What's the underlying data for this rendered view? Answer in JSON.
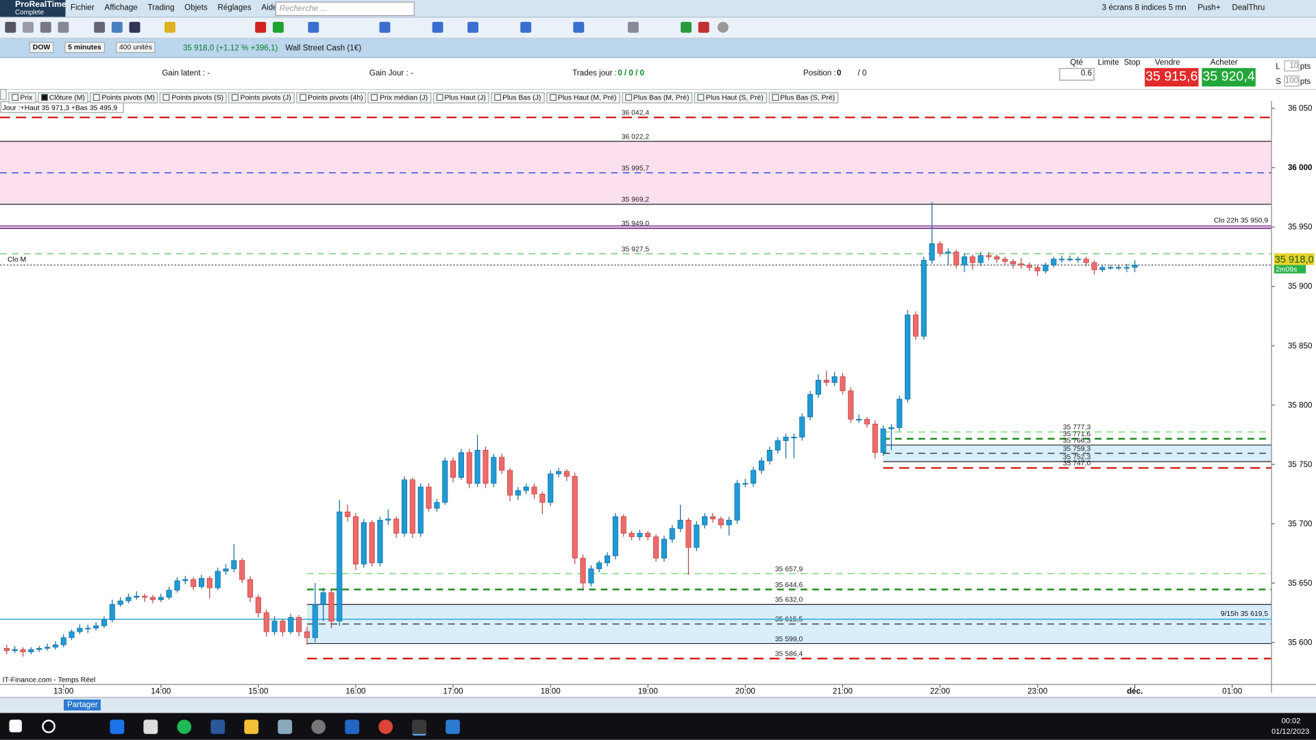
{
  "menu": {
    "app": "ProRealTime",
    "edition": "Complete",
    "items": [
      "Fichier",
      "Affichage",
      "Trading",
      "Objets",
      "Réglages",
      "Aide"
    ],
    "search": "Recherche ...",
    "right": [
      "3 écrans 8 indices 5 mn",
      "Push+",
      "DealThru"
    ]
  },
  "instrument": {
    "symbol": "DOW",
    "period": "5 minutes",
    "units": "400 unités",
    "quote": "35 918,0 (+1,12 % +396,1)",
    "name": "Wall Street Cash (1€)"
  },
  "order_panel": {
    "gain_latent": "Gain latent : -",
    "gain_jour": "Gain Jour : -",
    "trades_label": "Trades jour :",
    "trades_value": "0 / 0 / 0",
    "position_label": "Position :",
    "position_value": "0",
    "position_value2": "/ 0",
    "qty_label": "Qté",
    "qty": "0.6",
    "limit": "Limite",
    "stop": "Stop",
    "sell_label": "Vendre",
    "buy_label": "Acheter",
    "sell": "35 915,6",
    "buy": "35 920,4",
    "l_label": "L",
    "l_value": "10",
    "s_label": "S",
    "s_value": "100",
    "unit": "pts"
  },
  "indicators": [
    "Prix",
    "Clôture (M)",
    "Points pivots (M)",
    "Points pivots (S)",
    "Points pivots (J)",
    "Points pivots (4h)",
    "Prix médian (J)",
    "Plus Haut (J)",
    "Plus Bas (J)",
    "Plus Haut (M, Pré)",
    "Plus Bas (M, Pré)",
    "Plus Haut (S, Pré)",
    "Plus Bas (S, Pré)"
  ],
  "chart_data": {
    "type": "candlestick",
    "up_color": "#1f9bd6",
    "down_color": "#ee6b6b",
    "day_info": "Jour :+Haut 35 971,3 +Bas 35 495,9",
    "source": "IT-Finance.com - Temps Réel",
    "xlim": [
      -0.83,
      155.84
    ],
    "xticks": [
      {
        "value": 7,
        "label": "13:00"
      },
      {
        "value": 19,
        "label": "14:00"
      },
      {
        "value": 31,
        "label": "15:00"
      },
      {
        "value": 43,
        "label": "16:00"
      },
      {
        "value": 55,
        "label": "17:00"
      },
      {
        "value": 67,
        "label": "18:00"
      },
      {
        "value": 79,
        "label": "19:00"
      },
      {
        "value": 91,
        "label": "20:00"
      },
      {
        "value": 103,
        "label": "21:00"
      },
      {
        "value": 115,
        "label": "22:00"
      },
      {
        "value": 127,
        "label": "23:00"
      },
      {
        "value": 139,
        "label": "déc."
      },
      {
        "value": 151,
        "label": "01:00"
      }
    ],
    "ylim": [
      35564.6,
      36056.4
    ],
    "yticks": [
      {
        "value": 36050,
        "label": "36 050"
      },
      {
        "value": 36000,
        "label": "36 000"
      },
      {
        "value": 35950,
        "label": "35 950"
      },
      {
        "value": 35900,
        "label": "35 900"
      },
      {
        "value": 35850,
        "label": "35 850"
      },
      {
        "value": 35800,
        "label": "35 800"
      },
      {
        "value": 35750,
        "label": "35 750"
      },
      {
        "value": 35700,
        "label": "35 700"
      },
      {
        "value": 35650,
        "label": "35 650"
      },
      {
        "value": 35600,
        "label": "35 600"
      }
    ],
    "levels": [
      {
        "value": 36042.4,
        "label": "36 042,4",
        "color": "#d81e1e",
        "dash": "12 7",
        "width": 2
      },
      {
        "value": 36022.2,
        "label": "36 022,2",
        "color": "#222",
        "width": 1,
        "zone": "#fde0ef"
      },
      {
        "value": 35995.7,
        "label": "35 995,7",
        "color": "#4a55d8",
        "dash": "8 6",
        "width": 1.3
      },
      {
        "value": 35969.2,
        "label": "35 969,2",
        "color": "#222",
        "width": 1
      },
      {
        "value": 35949.0,
        "label": "35 949,0",
        "color": "#7a2f8c",
        "width": 1.5
      },
      {
        "value": 35927.5,
        "label": "35 927,5",
        "color": "#5cc05c",
        "dash": "8 6",
        "width": 1
      },
      {
        "value": 35657.9,
        "label": "35 657,9",
        "color": "#6ccf6c",
        "dash": "8 6",
        "width": 1,
        "from": 37
      },
      {
        "value": 35644.6,
        "label": "35 644,6",
        "color": "#1f8a1f",
        "dash": "8 6",
        "width": 2,
        "from": 37
      },
      {
        "value": 35632.0,
        "label": "35 632,0",
        "color": "#222",
        "width": 1,
        "from": 37,
        "zone": "#d8eefb"
      },
      {
        "value": 35615.5,
        "label": "35 615,5",
        "color": "#222",
        "dash": "8 6",
        "width": 1,
        "from": 37
      },
      {
        "value": 35599.0,
        "label": "35 599,0",
        "color": "#222",
        "width": 1,
        "from": 37
      },
      {
        "value": 35586.4,
        "label": "35 586,4",
        "color": "#d81e1e",
        "dash": "12 7",
        "width": 2,
        "from": 37
      },
      {
        "value": 35777.3,
        "label": "35 777,3",
        "color": "#6ccf6c",
        "dash": "8 6",
        "width": 1,
        "from": 108
      },
      {
        "value": 35771.6,
        "label": "35 771,6",
        "color": "#1f8a1f",
        "dash": "8 6",
        "width": 2,
        "from": 108
      },
      {
        "value": 35766.3,
        "label": "35 766,3",
        "color": "#222",
        "width": 1,
        "from": 108,
        "zone": "#d8eefb"
      },
      {
        "value": 35759.3,
        "label": "35 759,3",
        "color": "#222",
        "dash": "8 6",
        "width": 1,
        "from": 108
      },
      {
        "value": 35752.3,
        "label": "35 752,3",
        "color": "#222",
        "width": 1,
        "from": 108
      },
      {
        "value": 35747.0,
        "label": "35 747,0",
        "color": "#d81e1e",
        "dash": "12 7",
        "width": 2,
        "from": 108
      }
    ],
    "markers": [
      {
        "label": "Clo 22h 35 950,9",
        "value": 35950.9,
        "color": "#7a2f8c"
      },
      {
        "label": "9/15h 35 619,5",
        "value": 35619.5,
        "color": "#3fb0d8"
      }
    ],
    "current": {
      "label": "Clo M",
      "value": 35918.0,
      "value_label": "35 918,0",
      "countdown": "2m09s"
    },
    "candles": [
      [
        35595,
        35598,
        35590,
        35593
      ],
      [
        35593,
        35597,
        35591,
        35594
      ],
      [
        35594,
        35596,
        35588,
        35592
      ],
      [
        35592,
        35596,
        35590,
        35594
      ],
      [
        35594,
        35597,
        35592,
        35595
      ],
      [
        35595,
        35599,
        35593,
        35596
      ],
      [
        35596,
        35601,
        35594,
        35598
      ],
      [
        35598,
        35607,
        35596,
        35604
      ],
      [
        35604,
        35611,
        35602,
        35609
      ],
      [
        35609,
        35615,
        35607,
        35612
      ],
      [
        35612,
        35615,
        35608,
        35612
      ],
      [
        35612,
        35617,
        35610,
        35614
      ],
      [
        35614,
        35622,
        35612,
        35619
      ],
      [
        35619,
        35636,
        35617,
        35632
      ],
      [
        35632,
        35638,
        35630,
        35635
      ],
      [
        35635,
        35641,
        35633,
        35638
      ],
      [
        35638,
        35643,
        35636,
        35639
      ],
      [
        35639,
        35641,
        35634,
        35638
      ],
      [
        35638,
        35640,
        35633,
        35636
      ],
      [
        35636,
        35641,
        35634,
        35638
      ],
      [
        35638,
        35647,
        35636,
        35644
      ],
      [
        35644,
        35655,
        35642,
        35652
      ],
      [
        35652,
        35656,
        35649,
        35653
      ],
      [
        35653,
        35655,
        35644,
        35647
      ],
      [
        35647,
        35657,
        35645,
        35654
      ],
      [
        35654,
        35656,
        35637,
        35646
      ],
      [
        35646,
        35663,
        35644,
        35660
      ],
      [
        35660,
        35666,
        35657,
        35662
      ],
      [
        35662,
        35683,
        35659,
        35669
      ],
      [
        35669,
        35671,
        35650,
        35653
      ],
      [
        35653,
        35656,
        35634,
        35638
      ],
      [
        35638,
        35640,
        35621,
        35625
      ],
      [
        35625,
        35628,
        35605,
        35609
      ],
      [
        35609,
        35622,
        35606,
        35618
      ],
      [
        35618,
        35620,
        35605,
        35609
      ],
      [
        35609,
        35624,
        35607,
        35621
      ],
      [
        35621,
        35623,
        35605,
        35609
      ],
      [
        35609,
        35613,
        35598,
        35604
      ],
      [
        35604,
        35650,
        35600,
        35632
      ],
      [
        35632,
        35646,
        35618,
        35642
      ],
      [
        35642,
        35645,
        35612,
        35618
      ],
      [
        35618,
        35720,
        35614,
        35710
      ],
      [
        35710,
        35716,
        35702,
        35706
      ],
      [
        35706,
        35709,
        35661,
        35666
      ],
      [
        35666,
        35704,
        35663,
        35701
      ],
      [
        35701,
        35703,
        35664,
        35667
      ],
      [
        35667,
        35706,
        35664,
        35703
      ],
      [
        35703,
        35712,
        35699,
        35704
      ],
      [
        35704,
        35706,
        35688,
        35692
      ],
      [
        35692,
        35740,
        35689,
        35737
      ],
      [
        35737,
        35739,
        35688,
        35692
      ],
      [
        35692,
        35734,
        35689,
        35731
      ],
      [
        35731,
        35734,
        35710,
        35713
      ],
      [
        35713,
        35721,
        35710,
        35718
      ],
      [
        35718,
        35756,
        35716,
        35753
      ],
      [
        35753,
        35756,
        35735,
        35739
      ],
      [
        35739,
        35763,
        35737,
        35760
      ],
      [
        35760,
        35763,
        35730,
        35734
      ],
      [
        35734,
        35775,
        35731,
        35762
      ],
      [
        35762,
        35765,
        35730,
        35734
      ],
      [
        35734,
        35759,
        35731,
        35756
      ],
      [
        35756,
        35759,
        35742,
        35745
      ],
      [
        35745,
        35747,
        35719,
        35724
      ],
      [
        35724,
        35731,
        35720,
        35728
      ],
      [
        35728,
        35734,
        35725,
        35731
      ],
      [
        35731,
        35734,
        35721,
        35725
      ],
      [
        35725,
        35727,
        35708,
        35718
      ],
      [
        35718,
        35745,
        35715,
        35742
      ],
      [
        35742,
        35747,
        35739,
        35744
      ],
      [
        35744,
        35746,
        35736,
        35740
      ],
      [
        35740,
        35743,
        35666,
        35671
      ],
      [
        35671,
        35674,
        35645,
        35650
      ],
      [
        35650,
        35665,
        35647,
        35662
      ],
      [
        35662,
        35669,
        35659,
        35667
      ],
      [
        35667,
        35676,
        35664,
        35673
      ],
      [
        35673,
        35709,
        35670,
        35706
      ],
      [
        35706,
        35708,
        35689,
        35692
      ],
      [
        35692,
        35694,
        35686,
        35689
      ],
      [
        35689,
        35695,
        35686,
        35692
      ],
      [
        35692,
        35694,
        35686,
        35689
      ],
      [
        35689,
        35691,
        35668,
        35671
      ],
      [
        35671,
        35690,
        35668,
        35687
      ],
      [
        35687,
        35699,
        35684,
        35696
      ],
      [
        35696,
        35716,
        35693,
        35703
      ],
      [
        35703,
        35705,
        35657,
        35680
      ],
      [
        35680,
        35702,
        35677,
        35699
      ],
      [
        35699,
        35709,
        35696,
        35706
      ],
      [
        35706,
        35709,
        35701,
        35704
      ],
      [
        35704,
        35706,
        35696,
        35699
      ],
      [
        35699,
        35706,
        35690,
        35703
      ],
      [
        35703,
        35737,
        35700,
        35734
      ],
      [
        35734,
        35738,
        35731,
        35734
      ],
      [
        35734,
        35748,
        35731,
        35745
      ],
      [
        35745,
        35756,
        35742,
        35753
      ],
      [
        35753,
        35765,
        35750,
        35762
      ],
      [
        35762,
        35773,
        35759,
        35770
      ],
      [
        35770,
        35776,
        35755,
        35773
      ],
      [
        35773,
        35776,
        35755,
        35773
      ],
      [
        35773,
        35793,
        35770,
        35790
      ],
      [
        35790,
        35812,
        35787,
        35809
      ],
      [
        35809,
        35826,
        35806,
        35821
      ],
      [
        35821,
        35829,
        35816,
        35819
      ],
      [
        35819,
        35828,
        35816,
        35824
      ],
      [
        35824,
        35827,
        35809,
        35812
      ],
      [
        35812,
        35815,
        35785,
        35788
      ],
      [
        35788,
        35792,
        35785,
        35788
      ],
      [
        35788,
        35790,
        35781,
        35784
      ],
      [
        35784,
        35787,
        35755,
        35760
      ],
      [
        35760,
        35783,
        35757,
        35780
      ],
      [
        35780,
        35784,
        35762,
        35781
      ],
      [
        35781,
        35808,
        35778,
        35805
      ],
      [
        35805,
        35880,
        35802,
        35876
      ],
      [
        35876,
        35879,
        35855,
        35858
      ],
      [
        35858,
        35925,
        35855,
        35922
      ],
      [
        35922,
        35971,
        35919,
        35936
      ],
      [
        35936,
        35938,
        35925,
        35928
      ],
      [
        35928,
        35932,
        35918,
        35929
      ],
      [
        35929,
        35931,
        35915,
        35918
      ],
      [
        35918,
        35928,
        35912,
        35925
      ],
      [
        35925,
        35927,
        35914,
        35920
      ],
      [
        35920,
        35929,
        35917,
        35926
      ],
      [
        35926,
        35929,
        35922,
        35925
      ],
      [
        35925,
        35927,
        35920,
        35923
      ],
      [
        35923,
        35925,
        35918,
        35921
      ],
      [
        35921,
        35923,
        35915,
        35919
      ],
      [
        35919,
        35924,
        35915,
        35918
      ],
      [
        35918,
        35920,
        35913,
        35916
      ],
      [
        35916,
        35918,
        35909,
        35913
      ],
      [
        35913,
        35920,
        35911,
        35918
      ],
      [
        35918,
        35925,
        35916,
        35923
      ],
      [
        35923,
        35926,
        35920,
        35923
      ],
      [
        35923,
        35926,
        35921,
        35923
      ],
      [
        35923,
        35925,
        35920,
        35923
      ],
      [
        35923,
        35925,
        35917,
        35920
      ],
      [
        35920,
        35922,
        35910,
        35914
      ],
      [
        35914,
        35918,
        35912,
        35916
      ],
      [
        35916,
        35918,
        35914,
        35916
      ],
      [
        35916,
        35918,
        35914,
        35916
      ],
      [
        35916,
        35919,
        35912,
        35916
      ],
      [
        35916,
        35922,
        35912,
        35918
      ]
    ]
  },
  "bottom": {
    "share": "Partager"
  },
  "taskbar": {
    "time": "00:02",
    "date": "01/12/2023"
  }
}
